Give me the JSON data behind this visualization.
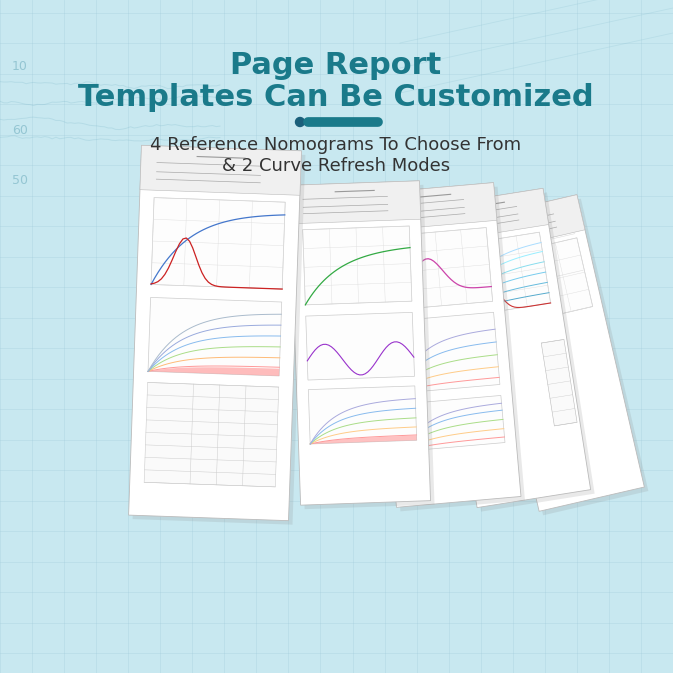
{
  "title_line1": "Page Report",
  "title_line2": "Templates Can Be Customized",
  "subtitle_line1": "4 Reference Nomograms To Choose From",
  "subtitle_line2": "& 2 Curve Refresh Modes",
  "title_color": "#1a7a8a",
  "subtitle_color": "#333333",
  "bg_color": "#c8e8f0",
  "accent_color": "#1a7a8a",
  "dot_color": "#1a5f7a",
  "title_fontsize": 22,
  "subtitle_fontsize": 13,
  "decorator_color": "#1a7a8a",
  "grid_color": "#9dc8d8",
  "grid_alpha": 0.4
}
